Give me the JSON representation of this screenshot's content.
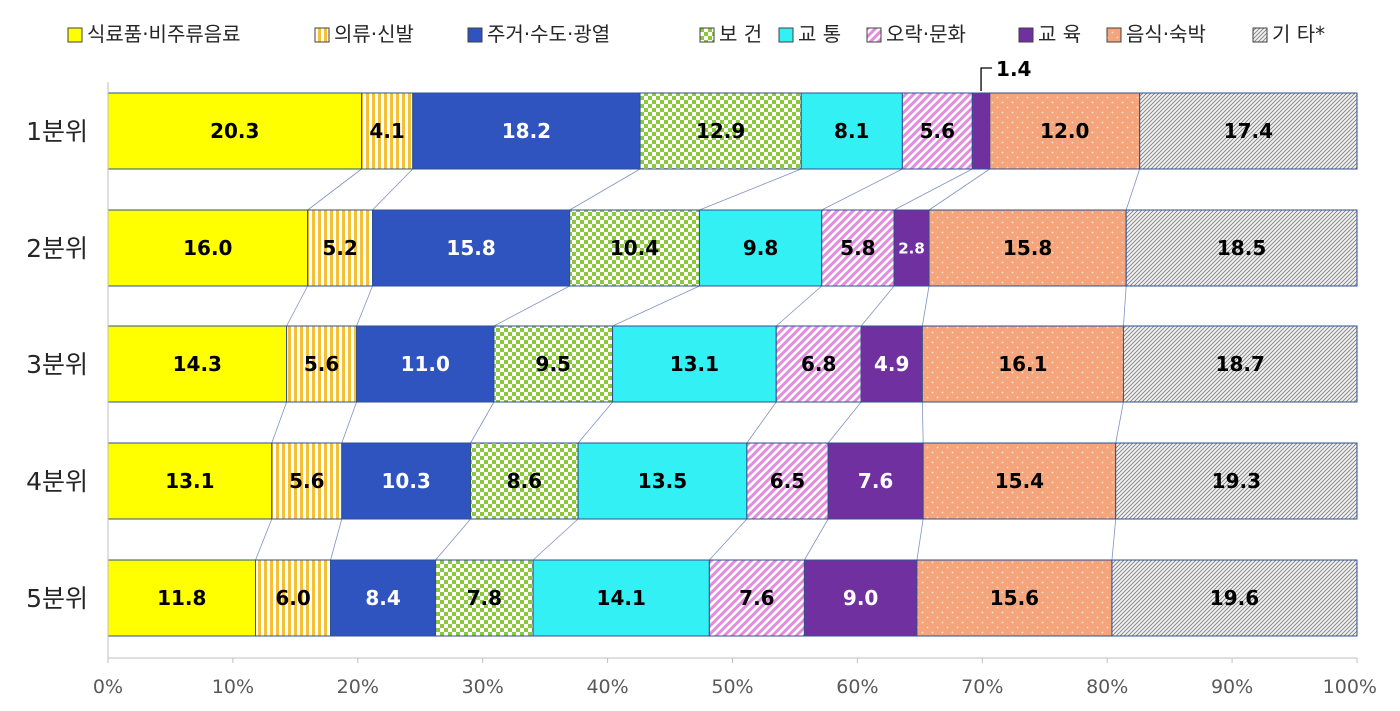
{
  "chart_data": {
    "type": "bar",
    "stacked": true,
    "orientation": "horizontal",
    "categories": [
      "1분위",
      "2분위",
      "3분위",
      "4분위",
      "5분위"
    ],
    "series": [
      {
        "name": "식료품·비주류음료",
        "values": [
          20.3,
          16.0,
          14.3,
          13.1,
          11.8
        ],
        "color": "#ffff00",
        "pattern": "solid",
        "label_color": "#000000"
      },
      {
        "name": "의류·신발",
        "values": [
          4.1,
          5.2,
          5.6,
          5.6,
          6.0
        ],
        "color": "#f6c034",
        "pattern": "vertical-stripes",
        "label_color": "#000000"
      },
      {
        "name": "주거·수도·광열",
        "values": [
          18.2,
          15.8,
          11.0,
          10.3,
          8.4
        ],
        "color": "#2f54c0",
        "pattern": "solid",
        "label_color": "#ffffff"
      },
      {
        "name": "보 건",
        "values": [
          12.9,
          10.4,
          9.5,
          8.6,
          7.8
        ],
        "color": "#8cc83c",
        "pattern": "checker",
        "label_color": "#000000"
      },
      {
        "name": "교 통",
        "values": [
          8.1,
          9.8,
          13.1,
          13.5,
          14.1
        ],
        "color": "#33f0f5",
        "pattern": "solid",
        "label_color": "#000000"
      },
      {
        "name": "오락·문화",
        "values": [
          5.6,
          5.8,
          6.8,
          6.5,
          7.6
        ],
        "color": "#e48be0",
        "pattern": "diagonal-stripes",
        "label_color": "#000000"
      },
      {
        "name": "교 육",
        "values": [
          1.4,
          2.8,
          4.9,
          7.6,
          9.0
        ],
        "color": "#7030a0",
        "pattern": "solid",
        "label_color": "#ffffff"
      },
      {
        "name": "음식·숙박",
        "values": [
          12.0,
          15.8,
          16.1,
          15.4,
          15.6
        ],
        "color": "#f4a57c",
        "pattern": "dots",
        "label_color": "#000000"
      },
      {
        "name": "기 타*",
        "values": [
          17.4,
          18.5,
          18.7,
          19.3,
          19.6
        ],
        "color": "#c8c8c8",
        "pattern": "crosshatch",
        "label_color": "#000000"
      }
    ],
    "xlim": [
      0,
      100
    ],
    "x_ticks": [
      "0%",
      "10%",
      "20%",
      "30%",
      "40%",
      "50%",
      "60%",
      "70%",
      "80%",
      "90%",
      "100%"
    ],
    "legend_position": "top",
    "connector_lines": true,
    "title": "",
    "xlabel": "",
    "ylabel": "",
    "callout": {
      "category": "1분위",
      "series": "교 육",
      "text": "1.4"
    }
  }
}
